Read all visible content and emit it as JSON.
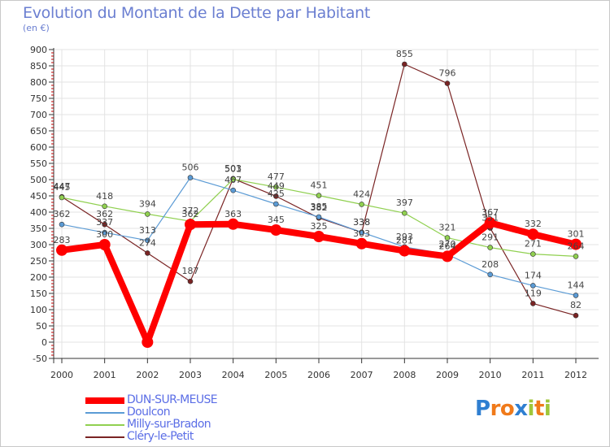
{
  "title": "Evolution du Montant de la Dette par Habitant",
  "subtitle": "(en €)",
  "brand": {
    "letters": [
      "P",
      "r",
      "o",
      "x",
      "i",
      "t",
      "i"
    ],
    "colors": [
      "#2f7fd1",
      "#f07a1a",
      "#f07a1a",
      "#2f7fd1",
      "#9fc63a",
      "#f07a1a",
      "#9fc63a"
    ]
  },
  "chart_data": {
    "type": "line",
    "x": [
      "2000",
      "2001",
      "2002",
      "2003",
      "2004",
      "2005",
      "2006",
      "2007",
      "2008",
      "2009",
      "2010",
      "2011",
      "2012"
    ],
    "yticks": [
      "900",
      "850",
      "800",
      "750",
      "700",
      "650",
      "600",
      "550",
      "500",
      "450",
      "400",
      "350",
      "300",
      "250",
      "200",
      "150",
      "100",
      "50",
      "0",
      "-50"
    ],
    "ylim": [
      -50,
      900
    ],
    "grid": true,
    "series": [
      {
        "name": "DUN-SUR-MEUSE",
        "color": "#ff0000",
        "width": 8,
        "marker": 7,
        "values": [
          283,
          300,
          0,
          362,
          363,
          345,
          325,
          303,
          281,
          264,
          367,
          332,
          301
        ],
        "labels": [
          "283",
          "300",
          "",
          "362",
          "363",
          "345",
          "325",
          "303",
          "281",
          "264",
          "367",
          "332",
          "301"
        ]
      },
      {
        "name": "Doulcon",
        "color": "#5b9bd5",
        "width": 1.2,
        "marker": 3,
        "values": [
          362,
          337,
          313,
          506,
          467,
          425,
          385,
          338,
          293,
          270,
          208,
          174,
          144
        ],
        "labels": [
          "362",
          "337",
          "313",
          "506",
          "467",
          "425",
          "385",
          "338",
          "293",
          "270",
          "208",
          "174",
          "144"
        ]
      },
      {
        "name": "Milly-sur-Bradon",
        "color": "#90d050",
        "width": 1.2,
        "marker": 3,
        "values": [
          445,
          418,
          394,
          372,
          501,
          477,
          451,
          424,
          397,
          321,
          291,
          271,
          264
        ],
        "labels": [
          "445",
          "418",
          "394",
          "372",
          "501",
          "477",
          "451",
          "424",
          "397",
          "321",
          "291",
          "271",
          "264"
        ]
      },
      {
        "name": "Cléry-le-Petit",
        "color": "#7a2424",
        "width": 1.2,
        "marker": 3,
        "values": [
          447,
          362,
          274,
          187,
          503,
          449,
          382,
          338,
          855,
          796,
          351,
          119,
          82
        ],
        "labels": [
          "447",
          "362",
          "274",
          "187",
          "503",
          "449",
          "382",
          "338",
          "855",
          "796",
          "351",
          "119",
          "82"
        ]
      }
    ]
  }
}
